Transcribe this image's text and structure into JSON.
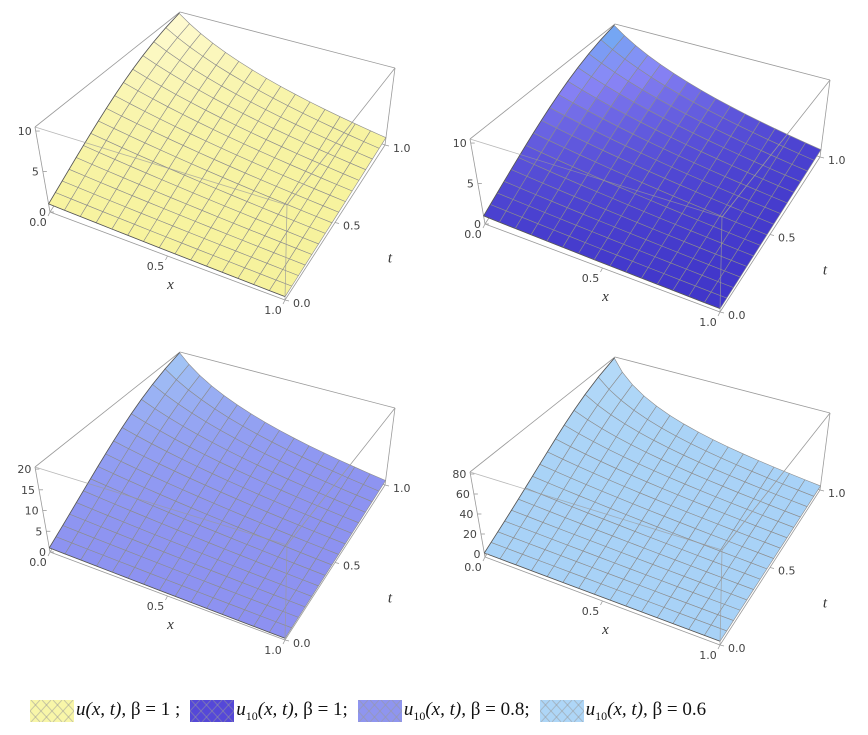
{
  "chart_data": [
    {
      "type": "surface3d",
      "xlabel": "x",
      "ylabel": "t",
      "x_ticks": [
        "0.0",
        "0.5",
        "1.0"
      ],
      "t_ticks": [
        "0.0",
        "0.5",
        "1.0"
      ],
      "z_ticks": [
        "0",
        "5",
        "10"
      ],
      "zlim": [
        0,
        10.5
      ],
      "z_corners": {
        "x0_t0": 1.0,
        "x1_t0": 0.37,
        "x0_t1": 10.2,
        "x1_t1": 1.0
      },
      "colors": {
        "low": "#f6f29a",
        "high": "#fffbd8"
      }
    },
    {
      "type": "surface3d",
      "xlabel": "x",
      "ylabel": "t",
      "x_ticks": [
        "0.0",
        "0.5",
        "1.0"
      ],
      "t_ticks": [
        "0.0",
        "0.5",
        "1.0"
      ],
      "z_ticks": [
        "0",
        "5",
        "10"
      ],
      "zlim": [
        0,
        10.5
      ],
      "z_corners": {
        "x0_t0": 1.0,
        "x1_t0": 0.37,
        "x0_t1": 10.2,
        "x1_t1": 1.0
      },
      "colors": {
        "low": "#3a2fc6",
        "mid": "#8a86f6",
        "high": "#6db3f2"
      }
    },
    {
      "type": "surface3d",
      "xlabel": "x",
      "ylabel": "t",
      "x_ticks": [
        "0.0",
        "0.5",
        "1.0"
      ],
      "t_ticks": [
        "0.0",
        "0.5",
        "1.0"
      ],
      "z_ticks": [
        "0",
        "5",
        "10",
        "15",
        "20"
      ],
      "zlim": [
        0,
        20.5
      ],
      "z_corners": {
        "x0_t0": 1.0,
        "x1_t0": 0.37,
        "x0_t1": 20.2,
        "x1_t1": 1.2
      },
      "colors": {
        "low": "#8c90f1",
        "high": "#a6cdf6"
      }
    },
    {
      "type": "surface3d",
      "xlabel": "x",
      "ylabel": "t",
      "x_ticks": [
        "0.0",
        "0.5",
        "1.0"
      ],
      "t_ticks": [
        "0.0",
        "0.5",
        "1.0"
      ],
      "z_ticks": [
        "0",
        "20",
        "40",
        "60",
        "80"
      ],
      "zlim": [
        -3,
        82
      ],
      "z_corners": {
        "x0_t0": 1.0,
        "x1_t0": 0.37,
        "x0_t1": 80,
        "x1_t1": 1.5
      },
      "colors": {
        "low": "#a8d2f7",
        "high": "#b6dbf8"
      }
    }
  ],
  "legend": [
    {
      "func": "u",
      "sub": "",
      "args": "(x, t), ",
      "beta": "β = 1 ;",
      "color": "#f8f6a8"
    },
    {
      "func": "u",
      "sub": "10",
      "args": "(x, t), ",
      "beta": "β = 1;",
      "color": "#5548d8"
    },
    {
      "func": "u",
      "sub": "10",
      "args": "(x, t), ",
      "beta": "β = 0.8;",
      "color": "#8f95ef"
    },
    {
      "func": "u",
      "sub": "10",
      "args": "(x, t), ",
      "beta": "β = 0.6",
      "color": "#aed6f7"
    }
  ]
}
